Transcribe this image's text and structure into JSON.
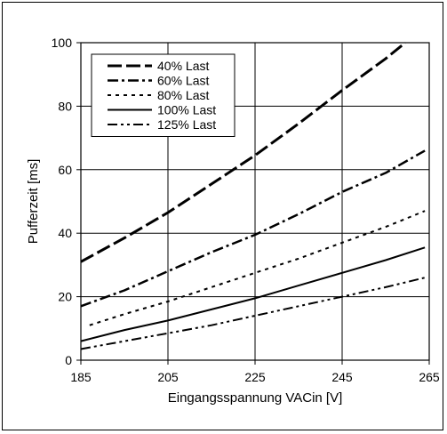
{
  "chart_data": {
    "type": "line",
    "xlabel": "Eingangsspannung VACin [V]",
    "ylabel": "Pufferzeit [ms]",
    "xlim": [
      185,
      265
    ],
    "ylim": [
      0,
      100
    ],
    "xticks": [
      185,
      205,
      225,
      245,
      265
    ],
    "yticks": [
      0,
      20,
      40,
      60,
      80,
      100
    ],
    "grid": true,
    "legend_position": "top-left",
    "series": [
      {
        "name": "40% Last",
        "dash": "long-dash",
        "x": [
          185,
          195,
          205,
          215,
          225,
          235,
          245,
          255,
          259.5
        ],
        "y": [
          31,
          38.5,
          46.5,
          55.5,
          64.5,
          74.5,
          85,
          95,
          100
        ]
      },
      {
        "name": "60% Last",
        "dash": "dash-dot",
        "x": [
          185,
          195,
          205,
          215,
          225,
          235,
          245,
          255,
          264
        ],
        "y": [
          17,
          22,
          28,
          34,
          39.5,
          46,
          53,
          59,
          66
        ]
      },
      {
        "name": "80% Last",
        "dash": "dotted",
        "x": [
          187,
          195,
          205,
          215,
          225,
          235,
          245,
          255,
          264
        ],
        "y": [
          11,
          14.5,
          18.5,
          23,
          27.5,
          32,
          37,
          42,
          47
        ]
      },
      {
        "name": "100% Last",
        "dash": "solid",
        "x": [
          185,
          195,
          205,
          215,
          225,
          235,
          245,
          255,
          264
        ],
        "y": [
          6,
          9.5,
          12.5,
          16,
          19.5,
          23.5,
          27.5,
          31.5,
          35.5
        ]
      },
      {
        "name": "125% Last",
        "dash": "dash-dot-dot",
        "x": [
          185,
          195,
          205,
          215,
          225,
          235,
          245,
          255,
          264
        ],
        "y": [
          3.5,
          6,
          8.5,
          11,
          14,
          17,
          20,
          23,
          26
        ]
      }
    ]
  }
}
